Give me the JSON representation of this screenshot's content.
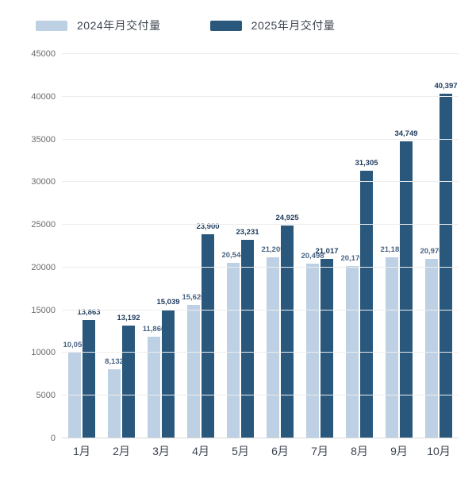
{
  "legend": {
    "items": [
      {
        "label": "2024年月交付量",
        "color": "#bdd0e4"
      },
      {
        "label": "2025年月交付量",
        "color": "#29587c"
      }
    ]
  },
  "chart_data": {
    "type": "bar",
    "title": "",
    "xlabel": "",
    "ylabel": "",
    "categories": [
      "1月",
      "2月",
      "3月",
      "4月",
      "5月",
      "6月",
      "7月",
      "8月",
      "9月",
      "10月"
    ],
    "series": [
      {
        "name": "2024年月交付量",
        "color": "#bdd0e4",
        "label_color": "#4a6584",
        "values": [
          10055,
          8132,
          11866,
          15620,
          20544,
          21209,
          20498,
          20176,
          21181,
          20976
        ],
        "labels": [
          "10,055",
          "8,132",
          "11,866",
          "15,620",
          "20,544",
          "21,209",
          "20,498",
          "20,176",
          "21,181",
          "20,976"
        ]
      },
      {
        "name": "2025年月交付量",
        "color": "#29587c",
        "label_color": "#1e3a5c",
        "values": [
          13863,
          13192,
          15039,
          23900,
          23231,
          24925,
          21017,
          31305,
          34749,
          40397
        ],
        "labels": [
          "13,863",
          "13,192",
          "15,039",
          "23,900",
          "23,231",
          "24,925",
          "21,017",
          "31,305",
          "34,749",
          "40,397"
        ]
      }
    ],
    "ylim": [
      0,
      45000
    ],
    "ytick_step": 5000,
    "yticks": [
      "0",
      "5000",
      "10000",
      "15000",
      "20000",
      "25000",
      "30000",
      "35000",
      "40000",
      "45000"
    ],
    "grid": true,
    "legend_position": "top"
  }
}
